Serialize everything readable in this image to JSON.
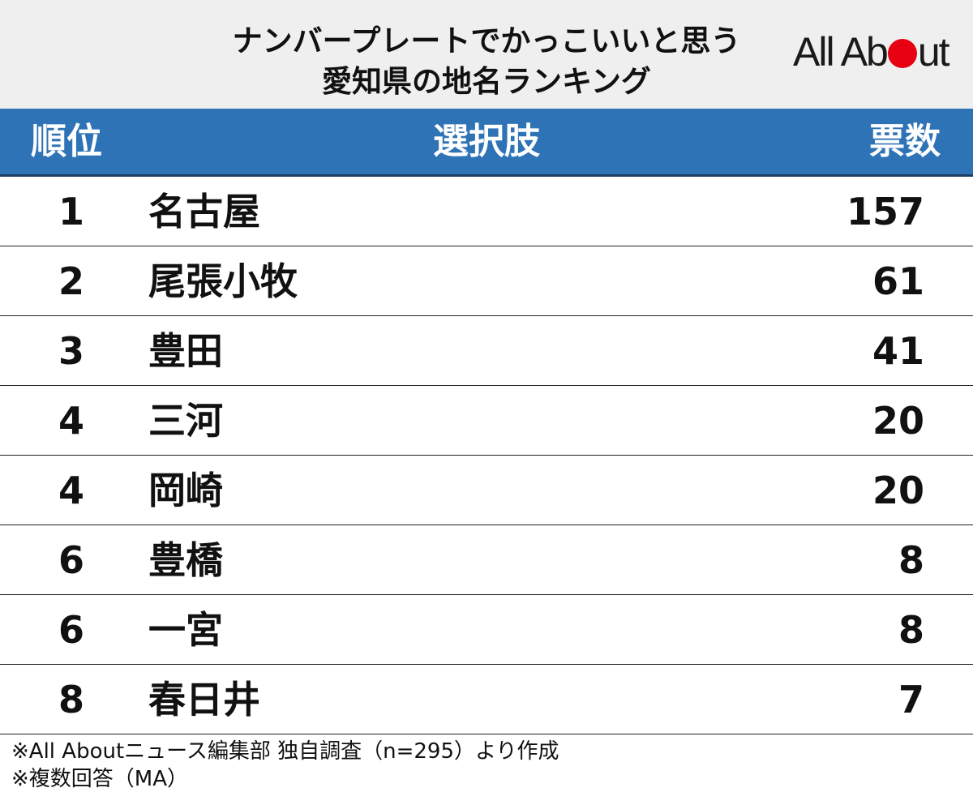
{
  "header": {
    "title_line1": "ナンバープレートでかっこいいと思う",
    "title_line2": "愛知県の地名ランキング",
    "logo_before_dot": "All Ab",
    "logo_after_dot": "ut",
    "logo_dot_color": "#e60012",
    "background_color": "#efefef"
  },
  "table_header": {
    "rank": "順位",
    "choice": "選択肢",
    "votes": "票数",
    "background_color": "#2f73b7"
  },
  "chart_data": {
    "type": "table",
    "title": "ナンバープレートでかっこいいと思う愛知県の地名ランキング",
    "columns": [
      "順位",
      "選択肢",
      "票数"
    ],
    "rows": [
      {
        "rank": "1",
        "name": "名古屋",
        "votes": "157"
      },
      {
        "rank": "2",
        "name": "尾張小牧",
        "votes": "61"
      },
      {
        "rank": "3",
        "name": "豊田",
        "votes": "41"
      },
      {
        "rank": "4",
        "name": "三河",
        "votes": "20"
      },
      {
        "rank": "4",
        "name": "岡崎",
        "votes": "20"
      },
      {
        "rank": "6",
        "name": "豊橋",
        "votes": "8"
      },
      {
        "rank": "6",
        "name": "一宮",
        "votes": "8"
      },
      {
        "rank": "8",
        "name": "春日井",
        "votes": "7"
      }
    ]
  },
  "footer": {
    "note1": "※All Aboutニュース編集部 独自調査（n=295）より作成",
    "note2": "※複数回答（MA）"
  }
}
